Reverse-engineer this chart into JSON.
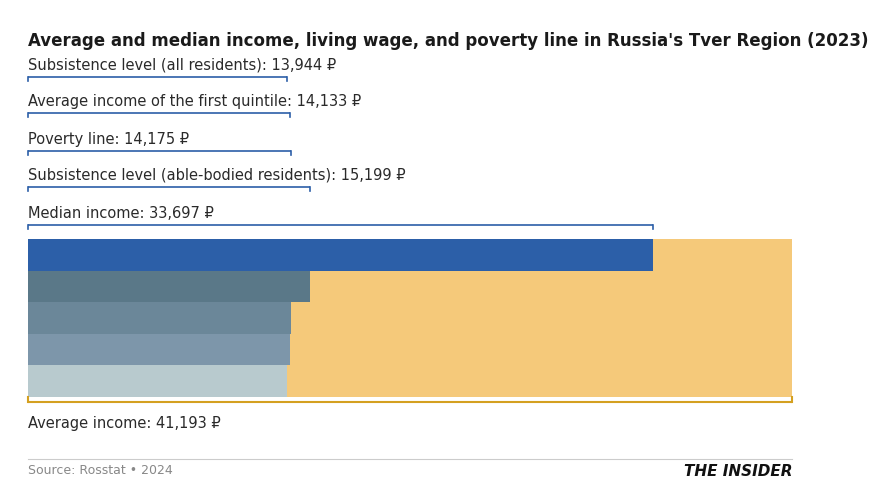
{
  "title": "Average and median income, living wage, and poverty line in Russia's Tver Region (2023)",
  "background_color": "#ffffff",
  "max_value": 41193,
  "source_text": "Source: Rosstat • 2024",
  "brand_text": "THE INSIDER",
  "items": [
    {
      "label": "Subsistence level (all residents): 13,944 ₽",
      "value": 13944,
      "bar_color": "#b8cace",
      "bracket_color": "#2c5fa8"
    },
    {
      "label": "Average income of the first quintile: 14,133 ₽",
      "value": 14133,
      "bar_color": "#7d96aa",
      "bracket_color": "#2c5fa8"
    },
    {
      "label": "Poverty line: 14,175 ₽",
      "value": 14175,
      "bar_color": "#6b8799",
      "bracket_color": "#2c5fa8"
    },
    {
      "label": "Subsistence level (able-bodied residents): 15,199 ₽",
      "value": 15199,
      "bar_color": "#5a7888",
      "bracket_color": "#2c5fa8"
    },
    {
      "label": "Median income: 33,697 ₽",
      "value": 33697,
      "bar_color": "#2c5fa8",
      "bracket_color": "#2c5fa8"
    },
    {
      "label": "Average income: 41,193 ₽",
      "value": 41193,
      "bar_color": null,
      "bracket_color": "#d4a020"
    }
  ],
  "gold_color": "#f5c97a",
  "gold_border_color": "#d4a020",
  "title_fontsize": 12,
  "label_fontsize": 10.5
}
